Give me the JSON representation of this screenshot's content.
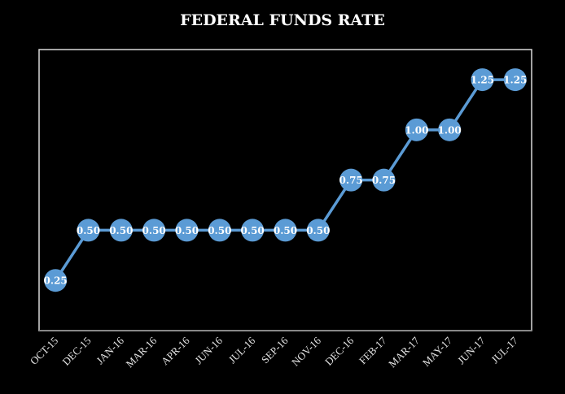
{
  "chart_data": {
    "type": "line",
    "title": "FEDERAL FUNDS RATE",
    "xlabel": "",
    "ylabel": "",
    "categories": [
      "OCT-15",
      "DEC-15",
      "JAN-16",
      "MAR-16",
      "APR-16",
      "JUN-16",
      "JUL-16",
      "SEP-16",
      "NOV-16",
      "DEC-16",
      "FEB-17",
      "MAR-17",
      "MAY-17",
      "JUN-17",
      "JUL-17"
    ],
    "series": [
      {
        "name": "Federal Funds Rate",
        "values": [
          0.25,
          0.5,
          0.5,
          0.5,
          0.5,
          0.5,
          0.5,
          0.5,
          0.5,
          0.75,
          0.75,
          1.0,
          1.0,
          1.25,
          1.25
        ]
      }
    ],
    "data_labels": [
      "0.25",
      "0.50",
      "0.50",
      "0.50",
      "0.50",
      "0.50",
      "0.50",
      "0.50",
      "0.50",
      "0.75",
      "0.75",
      "1.00",
      "1.00",
      "1.25",
      "1.25"
    ],
    "ylim": [
      0,
      1.4
    ],
    "grid": false,
    "legend": "none",
    "colors": {
      "line": "#5b9bd5",
      "background": "#000000",
      "text": "#ffffff"
    }
  }
}
